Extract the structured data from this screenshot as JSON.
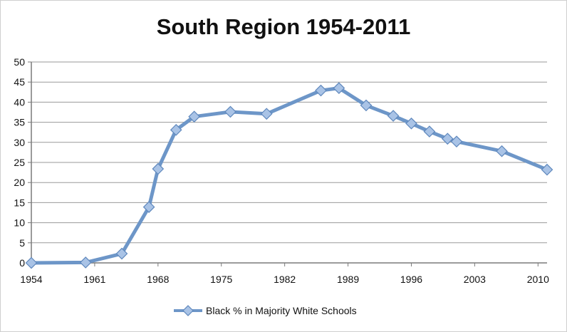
{
  "chart_data": {
    "type": "line",
    "title": "South Region 1954-2011",
    "xlabel": "",
    "ylabel": "",
    "xlim": [
      1954,
      2011
    ],
    "ylim": [
      0,
      50
    ],
    "x_ticks": [
      1954,
      1961,
      1968,
      1975,
      1982,
      1989,
      1996,
      2003,
      2010
    ],
    "y_ticks": [
      0,
      5,
      10,
      15,
      20,
      25,
      30,
      35,
      40,
      45,
      50
    ],
    "grid": "horizontal",
    "legend_position": "bottom",
    "series": [
      {
        "name": "Black % in Majority White Schools",
        "color": "#6d96c8",
        "points": [
          [
            1954,
            0.0
          ],
          [
            1960,
            0.1
          ],
          [
            1964,
            2.3
          ],
          [
            1967,
            13.9
          ],
          [
            1968,
            23.4
          ],
          [
            1970,
            33.1
          ],
          [
            1972,
            36.4
          ],
          [
            1976,
            37.6
          ],
          [
            1980,
            37.1
          ],
          [
            1986,
            42.9
          ],
          [
            1988,
            43.5
          ],
          [
            1991,
            39.2
          ],
          [
            1994,
            36.6
          ],
          [
            1996,
            34.7
          ],
          [
            1998,
            32.7
          ],
          [
            2000,
            30.9
          ],
          [
            2001,
            30.2
          ],
          [
            2006,
            27.8
          ],
          [
            2011,
            23.2
          ]
        ]
      }
    ]
  }
}
